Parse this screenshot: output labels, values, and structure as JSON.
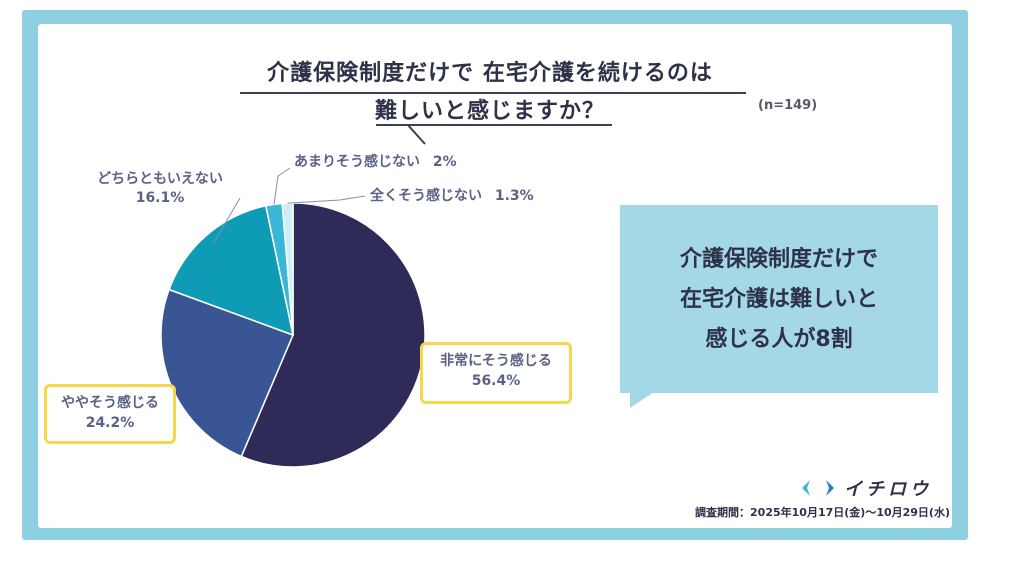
{
  "chart_data": {
    "type": "pie",
    "title_lines": [
      "介護保険制度だけで 在宅介護を続けるのは",
      "難しいと感じますか？"
    ],
    "sample_size": "(n=149)",
    "start": "12 o'clock",
    "direction": "clockwise",
    "slices": [
      {
        "label": "非常にそう感じる",
        "value_text": "56.4%",
        "value": 56.4,
        "color": "#2e2b58",
        "highlighted": true
      },
      {
        "label": "ややそう感じる",
        "value_text": "24.2%",
        "value": 24.2,
        "color": "#3a5593",
        "highlighted": true
      },
      {
        "label": "どちらともいえない",
        "value_text": "16.1%",
        "value": 16.1,
        "color": "#0e9bb5",
        "highlighted": false
      },
      {
        "label": "あまりそう感じない",
        "value_text": "2%",
        "value": 2.0,
        "color": "#39b7d4",
        "highlighted": false
      },
      {
        "label": "全くそう感じない",
        "value_text": "1.3%",
        "value": 1.3,
        "color": "#cdeef6",
        "highlighted": false
      }
    ]
  },
  "callout": {
    "lines": [
      "介護保険制度だけで",
      "在宅介護は難しいと",
      "感じる人が8割"
    ]
  },
  "brand": {
    "name": "イチロウ",
    "icon": "chevron-pair-logo-icon"
  },
  "survey_period": "調査期間：2025年10月17日(金)〜10月29日(水)",
  "colors": {
    "frame": "#8ecfe2",
    "callout": "#a5d8e6",
    "highlight_border": "#f6d64a",
    "title": "#2e3248"
  }
}
